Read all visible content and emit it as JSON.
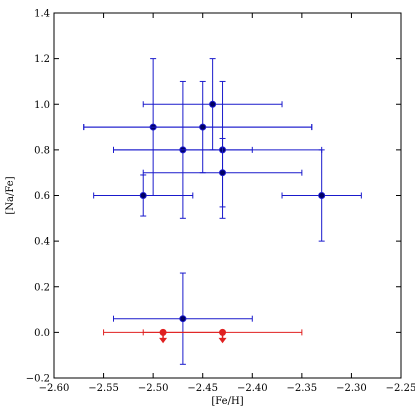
{
  "chart_data": {
    "type": "scatter",
    "xlabel": "[Fe/H]",
    "ylabel": "[Na/Fe]",
    "xlim": [
      -2.6,
      -2.25
    ],
    "ylim": [
      -0.2,
      1.4
    ],
    "x_ticks": [
      "−2.60",
      "−2.55",
      "−2.50",
      "−2.45",
      "−2.40",
      "−2.35",
      "−2.30",
      "−2.25"
    ],
    "y_ticks": [
      "−0.2",
      "0.0",
      "0.2",
      "0.4",
      "0.6",
      "0.8",
      "1.0",
      "1.2",
      "1.4"
    ],
    "grid": false,
    "series": [
      {
        "color": "#1a1acc",
        "marker": "circle",
        "points": [
          {
            "x": -2.44,
            "y": 1.0,
            "xerr_low": 0.07,
            "xerr_high": 0.07,
            "yerr": 0.2
          },
          {
            "x": -2.5,
            "y": 0.9,
            "xerr_low": 0.07,
            "xerr_high": 0.16,
            "yerr": 0.3
          },
          {
            "x": -2.45,
            "y": 0.9,
            "xerr_low": 0.12,
            "xerr_high": 0.11,
            "yerr": 0.2
          },
          {
            "x": -2.47,
            "y": 0.8,
            "xerr_low": 0.07,
            "xerr_high": 0.07,
            "yerr": 0.3
          },
          {
            "x": -2.43,
            "y": 0.8,
            "xerr_low": 0.11,
            "xerr_high": 0.1,
            "yerr": 0.3
          },
          {
            "x": -2.43,
            "y": 0.7,
            "xerr_low": 0.08,
            "xerr_high": 0.08,
            "yerr": 0.15
          },
          {
            "x": -2.51,
            "y": 0.6,
            "xerr_low": 0.05,
            "xerr_high": 0.05,
            "yerr": 0.09
          },
          {
            "x": -2.33,
            "y": 0.6,
            "xerr_low": 0.04,
            "xerr_high": 0.04,
            "yerr": 0.2
          },
          {
            "x": -2.47,
            "y": 0.06,
            "xerr_low": 0.07,
            "xerr_high": 0.07,
            "yerr": 0.2
          }
        ]
      },
      {
        "color": "#e02020",
        "marker": "circle",
        "upper_limit": true,
        "points": [
          {
            "x": -2.49,
            "y": 0.0,
            "xerr_low": 0.06,
            "xerr_high": 0.06
          },
          {
            "x": -2.43,
            "y": 0.0,
            "xerr_low": 0.08,
            "xerr_high": 0.08
          }
        ]
      }
    ]
  }
}
